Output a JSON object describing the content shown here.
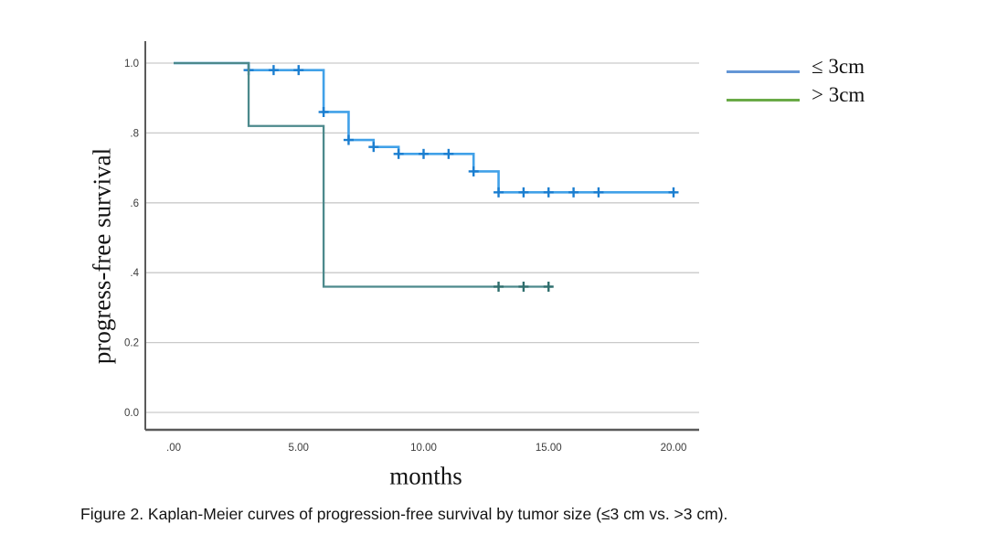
{
  "figure": {
    "caption": "Figure 2. Kaplan-Meier curves of progression-free survival by tumor size (≤3 cm vs. >3 cm)."
  },
  "chart_data": {
    "type": "line",
    "variant": "kaplan-meier-step",
    "title": "",
    "xlabel": "months",
    "ylabel": "progress-free survival",
    "x_ticks": [
      {
        "label": ".00",
        "value": 0
      },
      {
        "label": "5.00",
        "value": 5
      },
      {
        "label": "10.00",
        "value": 10
      },
      {
        "label": "15.00",
        "value": 15
      },
      {
        "label": "20.00",
        "value": 20
      }
    ],
    "y_ticks": [
      {
        "label": "1.0",
        "value": 1.0
      },
      {
        "label": ".8",
        "value": 0.8
      },
      {
        "label": ".6",
        "value": 0.6
      },
      {
        "label": ".4",
        "value": 0.4
      },
      {
        "label": "0.2",
        "value": 0.2
      },
      {
        "label": "0.0",
        "value": 0.0
      }
    ],
    "xlim": [
      -1.1,
      21.0
    ],
    "ylim": [
      -0.05,
      1.06
    ],
    "grid": "horizontal-only",
    "legend_position": "outside-top-right",
    "legend": [
      {
        "label": "≤ 3cm",
        "color": "#6496d6"
      },
      {
        "label": "> 3cm",
        "color": "#6aaa47"
      }
    ],
    "colors": {
      "gridline": "#c9c9c9",
      "axis_spine": "#5a5a5a",
      "tick_text": "#3c3c3c"
    },
    "series": [
      {
        "name": "≤ 3cm",
        "line_color": "#41a1e8",
        "censor_color": "#1b7ed0",
        "steps": [
          [
            0,
            1.0
          ],
          [
            3,
            0.98
          ],
          [
            6,
            0.86
          ],
          [
            7,
            0.78
          ],
          [
            8,
            0.76
          ],
          [
            9,
            0.74
          ],
          [
            12,
            0.69
          ],
          [
            13,
            0.63
          ]
        ],
        "end_time": 20.05,
        "censor_marks": [
          [
            3,
            0.98
          ],
          [
            4,
            0.98
          ],
          [
            5,
            0.98
          ],
          [
            6,
            0.86
          ],
          [
            7,
            0.78
          ],
          [
            8,
            0.76
          ],
          [
            9,
            0.74
          ],
          [
            10,
            0.74
          ],
          [
            11,
            0.74
          ],
          [
            12,
            0.69
          ],
          [
            13,
            0.63
          ],
          [
            14,
            0.63
          ],
          [
            15,
            0.63
          ],
          [
            16,
            0.63
          ],
          [
            17,
            0.63
          ],
          [
            20,
            0.63
          ]
        ]
      },
      {
        "name": "> 3cm",
        "line_color": "#4c898c",
        "censor_color": "#2f6e6d",
        "steps": [
          [
            0,
            1.0
          ],
          [
            3,
            0.82
          ],
          [
            6,
            0.36
          ]
        ],
        "end_time": 15.15,
        "censor_marks": [
          [
            13,
            0.36
          ],
          [
            14,
            0.36
          ],
          [
            15,
            0.36
          ]
        ]
      }
    ]
  }
}
